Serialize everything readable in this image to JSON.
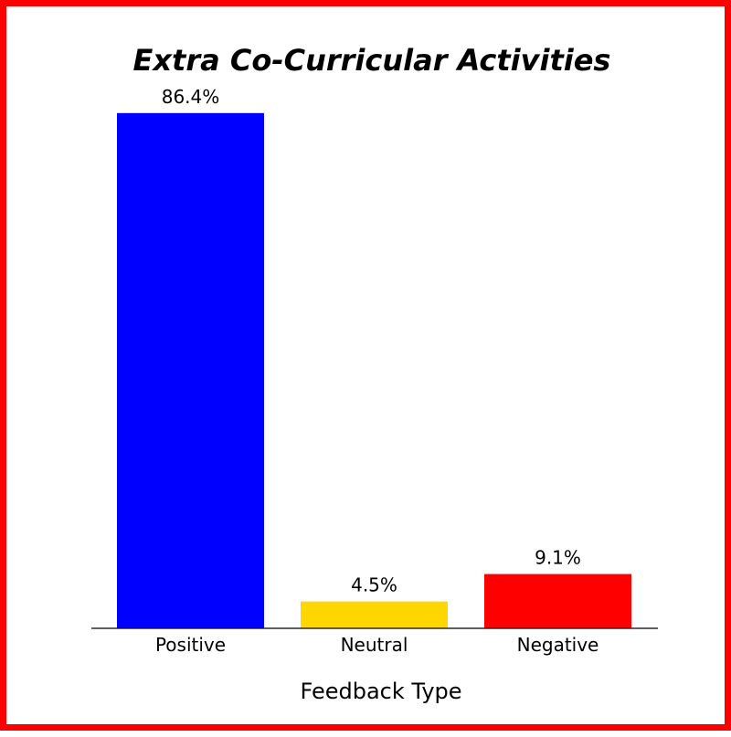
{
  "chart_data": {
    "type": "bar",
    "title": "Extra Co-Curricular Activities",
    "xlabel": "Feedback Type",
    "ylabel": "",
    "categories": [
      "Positive",
      "Neutral",
      "Negative"
    ],
    "values": [
      86.4,
      4.5,
      9.1
    ],
    "value_labels": [
      "86.4%",
      "4.5%",
      "9.1%"
    ],
    "colors": [
      "#0000ff",
      "#ffd700",
      "#ff0000"
    ],
    "ylim": [
      0,
      100
    ],
    "grid": false,
    "legend": "none"
  },
  "frame": {
    "border_color": "#ff0000"
  }
}
